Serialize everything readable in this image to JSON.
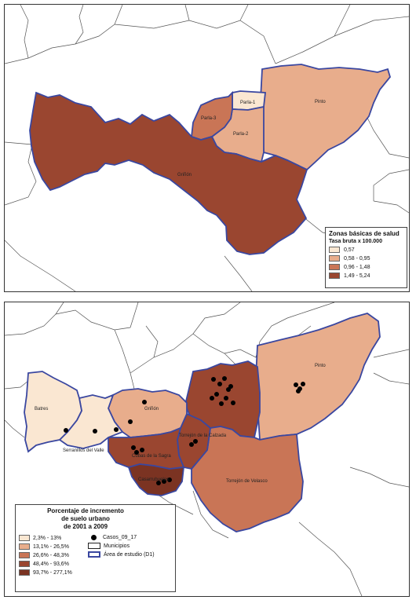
{
  "colors": {
    "class1": "#fae7d2",
    "class2": "#e8ad8c",
    "class3": "#c97556",
    "class4": "#9a4630",
    "class5": "#7b3322",
    "border_study": "#3a47a0",
    "border_muni": "#222222",
    "point": "#000000"
  },
  "top_map": {
    "zone_labels": {
      "parla1": "Parla-1",
      "parla2": "Parla-2",
      "parla3": "Parla-3",
      "pinto": "Pinto",
      "grinon": "Griñón"
    },
    "legend": {
      "title": "Zonas básicas de salud",
      "subtitle": "Tasa bruta x 100.000",
      "classes": [
        "0,57",
        "0,58 - 0,95",
        "0,96 - 1,48",
        "1,49 - 5,24"
      ]
    }
  },
  "bottom_map": {
    "muni_labels": {
      "batres": "Batres",
      "serranillos": "Serranillos del Valle",
      "grinon": "Griñón",
      "cubas": "Cubas de la Sagra",
      "torrejon_calzada": "Torrejón de la Calzada",
      "casarrubuelos": "Casarrubuelos",
      "torrejon_velasco": "Torrejón de Velasco",
      "pinto": "Pinto"
    },
    "legend": {
      "title_line1": "Porcentaje de incremento",
      "title_line2": "de suelo urbano",
      "title_line3": "de 2001 a 2009",
      "classes": [
        "2,3% - 13%",
        "13,1% - 26,5%",
        "26,6% - 48,3%",
        "48,4% - 93,6%",
        "93,7% - 277,1%"
      ],
      "points_label": "Casos_09_17",
      "muni_label": "Municipios",
      "study_label": "Área de estudio (D1)"
    }
  }
}
